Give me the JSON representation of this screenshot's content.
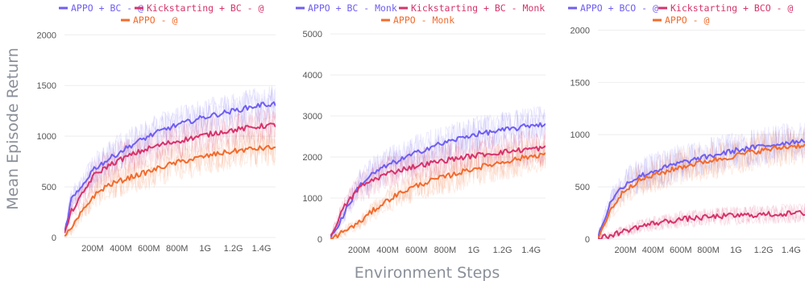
{
  "figure": {
    "ylabel": "Mean Episode Return",
    "xlabel": "Environment Steps",
    "colors": {
      "purple": "#6f5ef2",
      "pink": "#d6336c",
      "orange": "#f26b2d",
      "grid": "#eeeeee"
    }
  },
  "chart_data": [
    {
      "type": "line",
      "x_ticks": [
        "200M",
        "400M",
        "600M",
        "800M",
        "1G",
        "1.2G",
        "1.4G"
      ],
      "x_tick_values": [
        200,
        400,
        600,
        800,
        1000,
        1200,
        1400
      ],
      "xlim": [
        0,
        1500
      ],
      "ylim": [
        0,
        2050
      ],
      "y_ticks": [
        0,
        500,
        1000,
        1500,
        2000
      ],
      "x": [
        0,
        50,
        100,
        200,
        300,
        400,
        500,
        600,
        700,
        800,
        900,
        1000,
        1100,
        1200,
        1300,
        1400,
        1500
      ],
      "series": [
        {
          "name": "APPO + BC - @",
          "color": "purple",
          "values": [
            30,
            380,
            450,
            670,
            760,
            850,
            930,
            1000,
            1060,
            1110,
            1150,
            1190,
            1220,
            1250,
            1280,
            1310,
            1320
          ]
        },
        {
          "name": "Kickstarting + BC - @",
          "color": "pink",
          "values": [
            30,
            260,
            360,
            600,
            700,
            770,
            830,
            880,
            920,
            950,
            980,
            1010,
            1040,
            1060,
            1080,
            1100,
            1110
          ]
        },
        {
          "name": "APPO - @",
          "color": "orange",
          "values": [
            20,
            80,
            200,
            400,
            510,
            560,
            610,
            650,
            700,
            740,
            770,
            800,
            830,
            850,
            870,
            880,
            890
          ]
        }
      ]
    },
    {
      "type": "line",
      "x_ticks": [
        "200M",
        "400M",
        "600M",
        "800M",
        "1G",
        "1.2G",
        "1.4G"
      ],
      "x_tick_values": [
        200,
        400,
        600,
        800,
        1000,
        1200,
        1400
      ],
      "xlim": [
        0,
        1500
      ],
      "ylim": [
        0,
        5100
      ],
      "y_ticks": [
        0,
        1000,
        2000,
        3000,
        4000,
        5000
      ],
      "x": [
        0,
        50,
        100,
        200,
        300,
        400,
        500,
        600,
        700,
        800,
        900,
        1000,
        1100,
        1200,
        1300,
        1400,
        1500
      ],
      "series": [
        {
          "name": "APPO + BC - Monk",
          "color": "purple",
          "values": [
            30,
            300,
            650,
            1300,
            1600,
            1800,
            1950,
            2100,
            2250,
            2350,
            2450,
            2550,
            2600,
            2650,
            2700,
            2780,
            2800
          ]
        },
        {
          "name": "Kickstarting + BC - Monk",
          "color": "pink",
          "values": [
            30,
            450,
            800,
            1250,
            1450,
            1600,
            1700,
            1780,
            1850,
            1920,
            1980,
            2030,
            2080,
            2120,
            2160,
            2200,
            2220
          ]
        },
        {
          "name": "APPO - Monk",
          "color": "orange",
          "values": [
            0,
            100,
            200,
            400,
            700,
            950,
            1150,
            1300,
            1420,
            1520,
            1620,
            1720,
            1800,
            1880,
            1950,
            2020,
            2080
          ]
        }
      ]
    },
    {
      "type": "line",
      "x_ticks": [
        "200M",
        "400M",
        "600M",
        "800M",
        "1G",
        "1.2G",
        "1.4G"
      ],
      "x_tick_values": [
        200,
        400,
        600,
        800,
        1000,
        1200,
        1400
      ],
      "xlim": [
        0,
        1500
      ],
      "ylim": [
        0,
        2050
      ],
      "y_ticks": [
        0,
        500,
        1000,
        1500,
        2000
      ],
      "x": [
        0,
        50,
        100,
        200,
        300,
        400,
        500,
        600,
        700,
        800,
        900,
        1000,
        1100,
        1200,
        1300,
        1400,
        1500
      ],
      "series": [
        {
          "name": "APPO + BCO - @",
          "color": "purple",
          "values": [
            20,
            200,
            380,
            530,
            600,
            650,
            690,
            730,
            760,
            790,
            820,
            850,
            870,
            890,
            910,
            930,
            950
          ]
        },
        {
          "name": "Kickstarting + BCO - @",
          "color": "pink",
          "values": [
            0,
            20,
            40,
            80,
            120,
            150,
            170,
            190,
            200,
            210,
            220,
            225,
            230,
            235,
            240,
            245,
            250
          ]
        },
        {
          "name": "APPO - @",
          "color": "orange",
          "values": [
            10,
            150,
            300,
            480,
            560,
            610,
            650,
            690,
            720,
            750,
            770,
            800,
            830,
            850,
            870,
            890,
            900
          ]
        }
      ]
    }
  ]
}
